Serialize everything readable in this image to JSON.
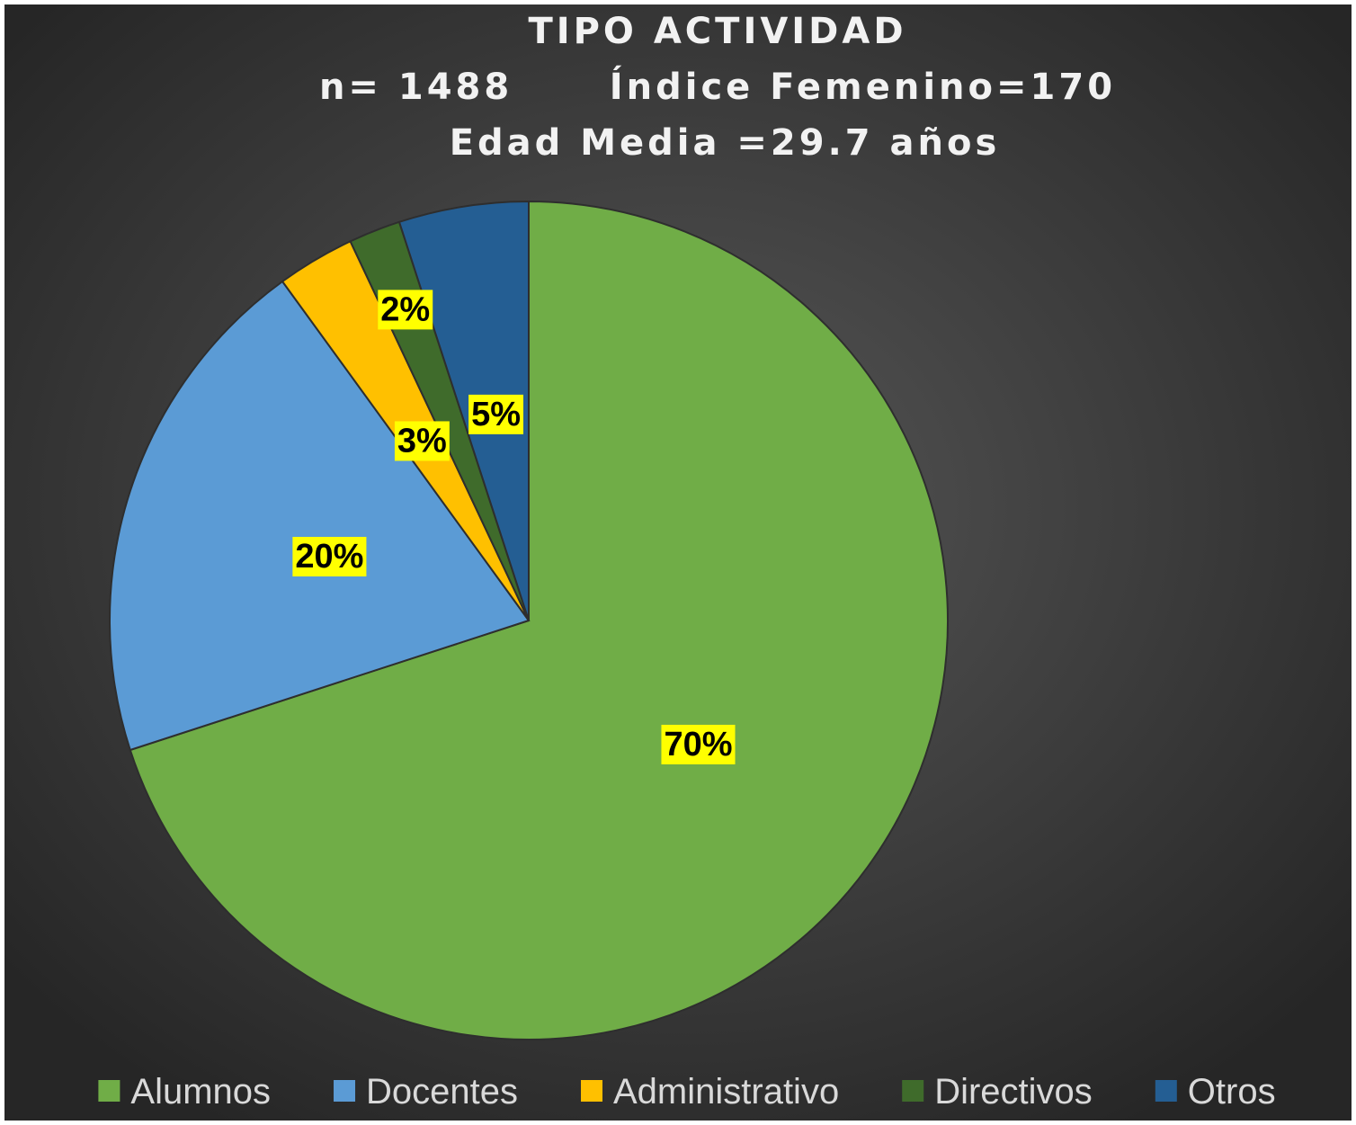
{
  "chart_data": {
    "type": "pie",
    "title": "TIPO ACTIVIDAD",
    "subtitle": [
      "n= 1488      Índice Femenino=170",
      "Edad Media =29.7 años"
    ],
    "categories": [
      "Alumnos",
      "Docentes",
      "Administrativo",
      "Directivos",
      "Otros"
    ],
    "values": [
      70,
      20,
      3,
      2,
      5
    ],
    "value_labels": [
      "70%",
      "20%",
      "3%",
      "2%",
      "5%"
    ],
    "colors": [
      "#70ad47",
      "#5b9bd5",
      "#ffc000",
      "#3f6b2b",
      "#245e93"
    ],
    "legend": "bottom"
  }
}
